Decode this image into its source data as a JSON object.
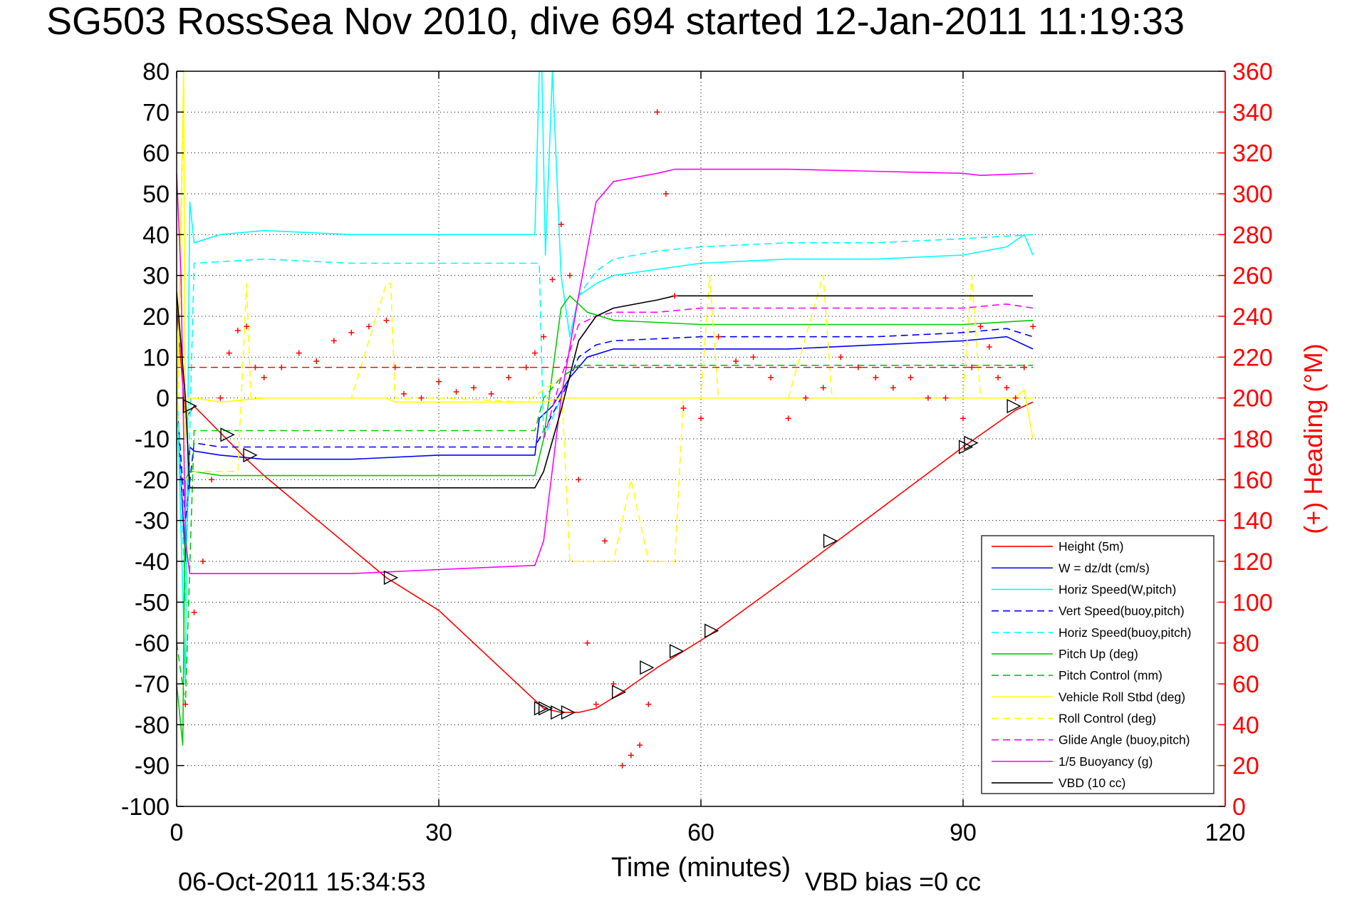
{
  "chart_data": {
    "type": "line",
    "title": "SG503 RossSea Nov 2010, dive 694 started 12-Jan-2011 11:19:33",
    "xlabel": "Time (minutes)",
    "ylabel_right": "(+) Heading (°M)",
    "footer_left": "06-Oct-2011 15:34:53",
    "footer_right": "VBD bias =0 cc",
    "xlim": [
      0,
      120
    ],
    "ylim_left": [
      -100,
      80
    ],
    "ylim_right": [
      0,
      360
    ],
    "x_ticks": [
      "0",
      "30",
      "60",
      "90",
      "120"
    ],
    "y_ticks_left": [
      "80",
      "70",
      "60",
      "50",
      "40",
      "30",
      "20",
      "10",
      "0",
      "-10",
      "-20",
      "-30",
      "-40",
      "-50",
      "-60",
      "-70",
      "-80",
      "-90",
      "-100"
    ],
    "y_ticks_right": [
      "360",
      "340",
      "320",
      "300",
      "280",
      "260",
      "240",
      "220",
      "200",
      "180",
      "160",
      "140",
      "120",
      "100",
      "80",
      "60",
      "40",
      "20",
      "0"
    ],
    "grid": true,
    "legend_position": "bottom-right",
    "series": [
      {
        "name": "Height (5m)",
        "color": "#ff0000",
        "style": "solid",
        "x": [
          0,
          1,
          2,
          8,
          10,
          24,
          30,
          42,
          44,
          46,
          48,
          51,
          55,
          58,
          61,
          70,
          80,
          90,
          96,
          98
        ],
        "y": [
          22,
          -5,
          -2,
          -15,
          -19,
          -44,
          -52,
          -76,
          -77,
          -77,
          -76,
          -72,
          -66,
          -62,
          -58,
          -44,
          -28,
          -12,
          -3,
          -1
        ]
      },
      {
        "name": "W = dz/dt (cm/s)",
        "color": "#0000ff",
        "style": "solid",
        "x": [
          0,
          1,
          1.5,
          2,
          5,
          10,
          20,
          30,
          41,
          41.5,
          43,
          45,
          47,
          50,
          60,
          70,
          80,
          90,
          95,
          98
        ],
        "y": [
          0,
          -40,
          -12,
          -13,
          -14,
          -15,
          -15,
          -14,
          -14,
          -5,
          -2,
          5,
          10,
          12,
          12,
          12,
          13,
          14,
          15,
          12
        ]
      },
      {
        "name": "Horiz Speed(W,pitch)",
        "color": "#00ffff",
        "style": "solid",
        "x": [
          0,
          1,
          1.5,
          2,
          5,
          10,
          20,
          30,
          41,
          41.5,
          41.8,
          42.2,
          43,
          44,
          45,
          46,
          48,
          50,
          60,
          70,
          80,
          90,
          95,
          97,
          98
        ],
        "y": [
          5,
          -70,
          48,
          38,
          40,
          41,
          40,
          40,
          40,
          80,
          80,
          35,
          80,
          30,
          15,
          25,
          28,
          30,
          33,
          34,
          34,
          35,
          37,
          40,
          35
        ]
      },
      {
        "name": "Vert Speed(buoy,pitch)",
        "color": "#0000ff",
        "style": "dashed",
        "x": [
          0,
          1,
          2,
          5,
          10,
          20,
          30,
          41,
          42,
          44,
          46,
          48,
          50,
          60,
          70,
          80,
          90,
          95,
          98
        ],
        "y": [
          0,
          -30,
          -11,
          -12,
          -12,
          -12,
          -12,
          -12,
          -8,
          0,
          10,
          13,
          14,
          15,
          15,
          15,
          16,
          17,
          15
        ]
      },
      {
        "name": "Horiz Speed(buoy,pitch)",
        "color": "#00ffff",
        "style": "dashed",
        "x": [
          0,
          1,
          2,
          10,
          20,
          30,
          41,
          41.5,
          42,
          44,
          46,
          48,
          50,
          55,
          60,
          70,
          80,
          90,
          98
        ],
        "y": [
          5,
          -50,
          33,
          34,
          33,
          33,
          33,
          33,
          -10,
          0,
          25,
          31,
          34,
          36,
          37,
          38,
          38,
          39,
          40
        ]
      },
      {
        "name": "Pitch Up (deg)",
        "color": "#00cc00",
        "style": "solid",
        "x": [
          0,
          0.7,
          1,
          1.5,
          2,
          5,
          10,
          20,
          30,
          41,
          42,
          44,
          45,
          47,
          50,
          60,
          70,
          80,
          90,
          98
        ],
        "y": [
          -70,
          -85,
          -20,
          -18,
          -18,
          -19,
          -19,
          -19,
          -19,
          -19,
          -10,
          22,
          25,
          21,
          19,
          18,
          18,
          18,
          18,
          19
        ]
      },
      {
        "name": "Pitch Control (mm)",
        "color": "#00cc00",
        "style": "dashed",
        "x": [
          0,
          1,
          2,
          10,
          20,
          30,
          41,
          42,
          44,
          46,
          48,
          55,
          60,
          70,
          80,
          90,
          98
        ],
        "y": [
          -60,
          -75,
          -8,
          -8,
          -8,
          -8,
          -8,
          0,
          5,
          8,
          8,
          8,
          8,
          8,
          8,
          8,
          8
        ]
      },
      {
        "name": "Vehicle Roll Stbd (deg)",
        "color": "#ffff00",
        "style": "solid",
        "x": [
          0,
          0.8,
          1,
          1.3,
          2,
          5,
          10,
          24,
          25,
          30,
          40,
          42,
          44,
          50,
          60,
          70,
          80,
          90,
          96,
          97,
          98
        ],
        "y": [
          -10,
          80,
          -10,
          0,
          0,
          -1,
          0,
          0,
          -1,
          -1,
          -1,
          -1,
          0,
          0,
          0,
          0,
          0,
          0,
          0,
          2,
          -10
        ]
      },
      {
        "name": "Roll Control (deg)",
        "color": "#ffff00",
        "style": "dashed",
        "x": [
          0,
          0.8,
          1,
          2,
          5,
          7,
          8,
          8.5,
          10,
          20,
          24,
          24.5,
          25,
          30,
          40,
          44,
          45,
          50,
          52,
          54,
          57,
          58,
          60,
          61,
          62,
          70,
          74,
          75,
          76,
          80,
          90,
          91,
          92,
          95,
          98
        ],
        "y": [
          -20,
          75,
          -20,
          -18,
          -18,
          -18,
          28,
          0,
          0,
          0,
          28,
          28,
          0,
          0,
          -1,
          5,
          -40,
          -40,
          -20,
          -40,
          -40,
          0,
          0,
          30,
          0,
          0,
          30,
          0,
          0,
          0,
          0,
          30,
          0,
          0,
          0
        ]
      },
      {
        "name": "Glide Angle (buoy,pitch)",
        "color": "#ff00ff",
        "style": "dashed",
        "x": [
          42,
          44,
          46,
          48,
          50,
          55,
          60,
          70,
          80,
          90,
          95,
          98
        ],
        "y": [
          -10,
          5,
          18,
          20,
          21,
          21,
          22,
          22,
          22,
          22,
          23,
          22
        ]
      },
      {
        "name": "1/5 Buoyancy (g)",
        "color": "#ff00ff",
        "style": "solid",
        "x": [
          0,
          0.5,
          1,
          1.5,
          2,
          5,
          10,
          20,
          30,
          41,
          42,
          44,
          46,
          48,
          50,
          55,
          57,
          60,
          70,
          80,
          90,
          92,
          98
        ],
        "y": [
          55,
          30,
          -35,
          -43,
          -43,
          -43,
          -43,
          -43,
          -42,
          -41,
          -35,
          0,
          25,
          48,
          53,
          55,
          56,
          56,
          56,
          55.5,
          55,
          54.5,
          55
        ]
      },
      {
        "name": "VBD (10 cc)",
        "color": "#000000",
        "style": "solid",
        "x": [
          0,
          1,
          1.5,
          2,
          10,
          20,
          30,
          41,
          42,
          44,
          46,
          48,
          50,
          55,
          57,
          60,
          70,
          80,
          90,
          98
        ],
        "y": [
          26,
          0,
          -22,
          -22,
          -22,
          -22,
          -22,
          -22,
          -18,
          -3,
          14,
          20,
          22,
          24,
          25,
          25,
          25,
          25,
          25,
          25
        ]
      }
    ],
    "heading": {
      "name": "(+) Heading",
      "axis": "right",
      "color": "#ff0000",
      "marker": "+",
      "x": [
        0,
        1,
        2,
        3,
        4,
        5,
        6,
        7,
        8,
        9,
        10,
        12,
        14,
        16,
        18,
        20,
        22,
        24,
        25,
        26,
        28,
        30,
        32,
        34,
        36,
        38,
        40,
        41,
        42,
        43,
        44,
        45,
        46,
        47,
        48,
        49,
        50,
        51,
        52,
        53,
        54,
        55,
        56,
        57,
        58,
        60,
        62,
        64,
        66,
        68,
        70,
        72,
        74,
        76,
        78,
        80,
        82,
        84,
        86,
        88,
        90,
        91,
        92,
        93,
        94,
        95,
        96,
        97,
        98
      ],
      "y": [
        80,
        50,
        95,
        120,
        160,
        200,
        222,
        233,
        235,
        215,
        210,
        215,
        222,
        218,
        228,
        232,
        235,
        238,
        215,
        202,
        200,
        208,
        203,
        205,
        202,
        210,
        215,
        222,
        230,
        258,
        285,
        260,
        160,
        80,
        50,
        130,
        60,
        20,
        25,
        30,
        50,
        340,
        300,
        250,
        195,
        190,
        230,
        218,
        220,
        210,
        190,
        200,
        205,
        220,
        215,
        210,
        205,
        210,
        200,
        200,
        190,
        215,
        235,
        225,
        210,
        205,
        200,
        215,
        235
      ]
    },
    "markers": {
      "description": "triangles along the Height trace",
      "x": [
        1.5,
        5.8,
        8.4,
        24.5,
        41.7,
        42.2,
        43.6,
        44.8,
        50.6,
        53.8,
        57.2,
        61.2,
        74.8,
        90.3,
        90.9,
        95.8
      ],
      "y": [
        -2,
        -9,
        -14,
        -44,
        -76,
        -76,
        -77,
        -77,
        -72,
        -66,
        -62,
        -57,
        -35,
        -12,
        -11,
        -2
      ]
    }
  }
}
